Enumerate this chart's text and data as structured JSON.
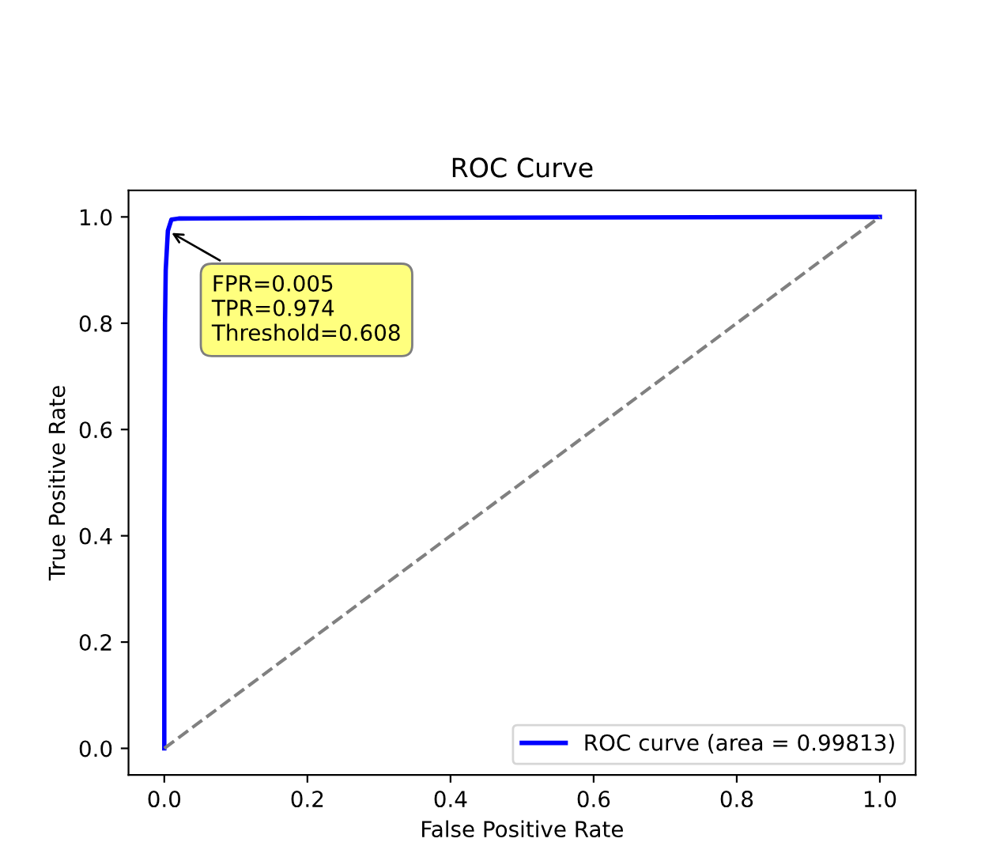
{
  "chart_data": {
    "type": "line",
    "title": "ROC Curve",
    "xlabel": "False Positive Rate",
    "ylabel": "True Positive Rate",
    "series": [
      {
        "name": "ROC curve (area = 0.99813)",
        "color": "#0000ff",
        "line_style": "solid",
        "x": [
          0,
          0,
          0.001,
          0.002,
          0.005,
          0.01,
          0.02,
          0.2,
          1
        ],
        "values": [
          0,
          0.43,
          0.8,
          0.9,
          0.974,
          0.995,
          0.997,
          0.998,
          1
        ]
      },
      {
        "color": "#808080",
        "line_style": "dashed",
        "x": [
          0,
          1
        ],
        "values": [
          0,
          1
        ]
      }
    ],
    "annotations": [
      {
        "text": "FPR=0.005\nTPR=0.974\nThreshold=0.608",
        "x": 0.005,
        "y": 0.974
      }
    ],
    "xlim": [
      -0.05,
      1.05
    ],
    "ylim": [
      -0.05,
      1.05
    ],
    "xticks": [
      {
        "value": 0,
        "label": "0.0"
      },
      0.2,
      0.4,
      0.6,
      0.8,
      {
        "value": 1,
        "label": "1.0"
      }
    ],
    "yticks": [
      {
        "value": 0,
        "label": "0.0"
      },
      0.2,
      0.4,
      0.6,
      0.8,
      {
        "value": 1,
        "label": "1.0"
      }
    ],
    "grid": false,
    "legend": "bottom right"
  }
}
